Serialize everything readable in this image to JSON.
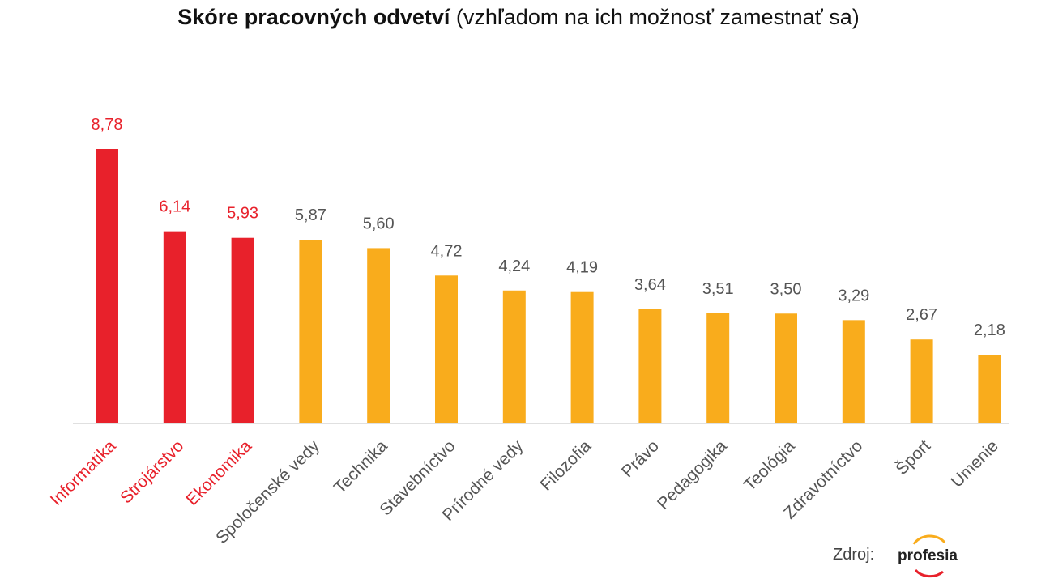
{
  "chart_data": {
    "type": "bar",
    "title_bold": "Skóre pracovných odvetví",
    "title_rest": " (vzhľadom na ich možnosť zamestnať sa)",
    "categories": [
      "Informatika",
      "Strojárstvo",
      "Ekonomika",
      "Spoločenské vedy",
      "Technika",
      "Stavebníctvo",
      "Prírodné vedy",
      "Filozofia",
      "Právo",
      "Pedagogika",
      "Teológia",
      "Zdravotníctvo",
      "Šport",
      "Umenie"
    ],
    "values": [
      8.78,
      6.14,
      5.93,
      5.87,
      5.6,
      4.72,
      4.24,
      4.19,
      3.64,
      3.51,
      3.5,
      3.29,
      2.67,
      2.18
    ],
    "value_labels": [
      "8,78",
      "6,14",
      "5,93",
      "5,87",
      "5,60",
      "4,72",
      "4,24",
      "4,19",
      "3,64",
      "3,51",
      "3,50",
      "3,29",
      "2,67",
      "2,18"
    ],
    "highlighted_count": 3,
    "ylim": [
      0,
      8.78
    ],
    "grid": false,
    "colors": {
      "highlight": "#e8212b",
      "default": "#f9ac1c",
      "label_default": "#555555",
      "axis": "#e0e0e0"
    }
  },
  "footer": {
    "source_label": "Zdroj:",
    "logo_text": "profesia"
  }
}
